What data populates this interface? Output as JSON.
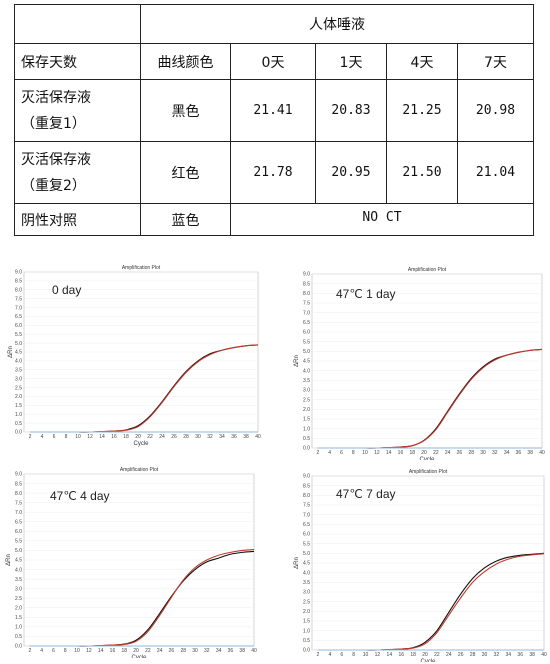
{
  "table": {
    "header_top": "人体唾液",
    "col_headers": [
      "保存天数",
      "曲线颜色",
      "0天",
      "1天",
      "4天",
      "7天"
    ],
    "rows": [
      {
        "name_line1": "灭活保存液",
        "name_line2": "（重复1）",
        "color": "黑色",
        "values": [
          "21.41",
          "20.83",
          "21.25",
          "20.98"
        ]
      },
      {
        "name_line1": "灭活保存液",
        "name_line2": "（重复2）",
        "color": "红色",
        "values": [
          "21.78",
          "20.95",
          "21.50",
          "21.04"
        ]
      }
    ],
    "negative": {
      "name": "阴性对照",
      "color": "蓝色",
      "value": "NO CT"
    }
  },
  "plots": [
    {
      "title": "Amplification Plot",
      "condition": "0 day",
      "ylabel": "ΔRn",
      "xlabel": "Cycle"
    },
    {
      "title": "Amplification Plot",
      "condition": "47℃ 1 day",
      "ylabel": "ΔRn",
      "xlabel": "Cycle"
    },
    {
      "title": "Amplification Plot",
      "condition": "47℃ 4 day",
      "ylabel": "ΔRn",
      "xlabel": "Cycle"
    },
    {
      "title": "Amplification Plot",
      "condition": "47℃ 7 day",
      "ylabel": "ΔRn",
      "xlabel": "Cycle"
    }
  ],
  "chart_data": [
    {
      "type": "line",
      "title": "Amplification Plot",
      "xlabel": "Cycle",
      "ylabel": "ΔRn",
      "xlim": [
        1,
        40
      ],
      "ylim": [
        0,
        9
      ],
      "x": [
        2,
        4,
        6,
        8,
        10,
        12,
        14,
        16,
        18,
        20,
        22,
        24,
        26,
        28,
        30,
        32,
        34,
        36,
        38,
        40
      ],
      "series": [
        {
          "name": "黑色",
          "color": "#111111",
          "values": [
            0.0,
            0.0,
            0.0,
            0.0,
            0.0,
            0.0,
            0.02,
            0.05,
            0.12,
            0.35,
            0.9,
            1.7,
            2.6,
            3.4,
            4.0,
            4.4,
            4.6,
            4.75,
            4.85,
            4.9
          ]
        },
        {
          "name": "红色",
          "color": "#c0392b",
          "values": [
            0.0,
            0.0,
            0.0,
            0.0,
            0.0,
            0.0,
            0.02,
            0.05,
            0.1,
            0.3,
            0.85,
            1.65,
            2.55,
            3.35,
            3.95,
            4.35,
            4.6,
            4.75,
            4.85,
            4.9
          ]
        },
        {
          "name": "蓝色",
          "color": "#8fb4e0",
          "values": [
            0.0,
            0.0,
            0.0,
            0.0,
            0.0,
            0.0,
            0.0,
            0.0,
            0.0,
            0.0,
            0.0,
            0.0,
            0.0,
            0.0,
            0.0,
            0.0,
            0.0,
            0.0,
            0.0,
            0.0
          ]
        }
      ]
    },
    {
      "type": "line",
      "title": "Amplification Plot",
      "xlabel": "Cycle",
      "ylabel": "ΔRn",
      "xlim": [
        1,
        40
      ],
      "ylim": [
        0,
        9
      ],
      "x": [
        2,
        4,
        6,
        8,
        10,
        12,
        14,
        16,
        18,
        20,
        22,
        24,
        26,
        28,
        30,
        32,
        34,
        36,
        38,
        40
      ],
      "series": [
        {
          "name": "黑色",
          "color": "#111111",
          "values": [
            0.0,
            0.0,
            0.0,
            0.0,
            0.0,
            0.0,
            0.02,
            0.05,
            0.12,
            0.4,
            1.0,
            1.9,
            2.8,
            3.6,
            4.2,
            4.6,
            4.8,
            4.95,
            5.05,
            5.1
          ]
        },
        {
          "name": "红色",
          "color": "#c0392b",
          "values": [
            0.0,
            0.0,
            0.0,
            0.0,
            0.0,
            0.0,
            0.02,
            0.05,
            0.12,
            0.38,
            0.95,
            1.85,
            2.75,
            3.55,
            4.15,
            4.55,
            4.8,
            4.95,
            5.05,
            5.1
          ]
        },
        {
          "name": "蓝色",
          "color": "#8fb4e0",
          "values": [
            0.0,
            0.0,
            0.0,
            0.0,
            0.0,
            0.0,
            0.0,
            0.0,
            0.0,
            0.0,
            0.0,
            0.0,
            0.0,
            0.0,
            0.0,
            0.0,
            0.0,
            0.0,
            0.0,
            0.0
          ]
        }
      ]
    },
    {
      "type": "line",
      "title": "Amplification Plot",
      "xlabel": "Cycle",
      "ylabel": "ΔRn",
      "xlim": [
        1,
        40
      ],
      "ylim": [
        0,
        9
      ],
      "x": [
        2,
        4,
        6,
        8,
        10,
        12,
        14,
        16,
        18,
        20,
        22,
        24,
        26,
        28,
        30,
        32,
        34,
        36,
        38,
        40
      ],
      "series": [
        {
          "name": "黑色",
          "color": "#111111",
          "values": [
            0.0,
            0.0,
            0.0,
            0.0,
            0.0,
            0.0,
            0.02,
            0.05,
            0.1,
            0.3,
            0.85,
            1.7,
            2.6,
            3.4,
            4.0,
            4.4,
            4.6,
            4.8,
            4.9,
            4.95
          ]
        },
        {
          "name": "红色",
          "color": "#c0392b",
          "values": [
            0.0,
            0.0,
            0.0,
            0.0,
            0.0,
            0.0,
            0.02,
            0.05,
            0.08,
            0.25,
            0.75,
            1.6,
            2.55,
            3.45,
            4.1,
            4.5,
            4.75,
            4.9,
            5.0,
            5.05
          ]
        },
        {
          "name": "蓝色",
          "color": "#8fb4e0",
          "values": [
            0.0,
            0.0,
            0.0,
            0.0,
            0.0,
            0.0,
            0.0,
            0.0,
            0.0,
            0.0,
            0.0,
            0.0,
            0.0,
            0.0,
            0.0,
            0.0,
            0.0,
            0.0,
            0.0,
            0.0
          ]
        }
      ]
    },
    {
      "type": "line",
      "title": "Amplification Plot",
      "xlabel": "Cycle",
      "ylabel": "ΔRn",
      "xlim": [
        1,
        40
      ],
      "ylim": [
        0,
        9
      ],
      "x": [
        2,
        4,
        6,
        8,
        10,
        12,
        14,
        16,
        18,
        20,
        22,
        24,
        26,
        28,
        30,
        32,
        34,
        36,
        38,
        40
      ],
      "series": [
        {
          "name": "黑色",
          "color": "#111111",
          "values": [
            0.0,
            0.0,
            0.0,
            0.0,
            0.0,
            0.0,
            0.02,
            0.05,
            0.12,
            0.4,
            1.0,
            1.95,
            2.9,
            3.7,
            4.25,
            4.6,
            4.8,
            4.9,
            4.95,
            5.0
          ]
        },
        {
          "name": "红色",
          "color": "#c0392b",
          "values": [
            0.0,
            0.0,
            0.0,
            0.0,
            0.0,
            0.0,
            0.02,
            0.05,
            0.1,
            0.32,
            0.9,
            1.8,
            2.7,
            3.5,
            4.05,
            4.45,
            4.7,
            4.85,
            4.92,
            4.98
          ]
        },
        {
          "name": "蓝色",
          "color": "#8fb4e0",
          "values": [
            0.0,
            0.0,
            0.0,
            0.0,
            0.0,
            0.0,
            0.0,
            0.0,
            0.0,
            0.0,
            0.0,
            0.0,
            0.0,
            0.0,
            0.0,
            0.0,
            0.0,
            0.0,
            0.0,
            0.0
          ]
        }
      ]
    }
  ]
}
